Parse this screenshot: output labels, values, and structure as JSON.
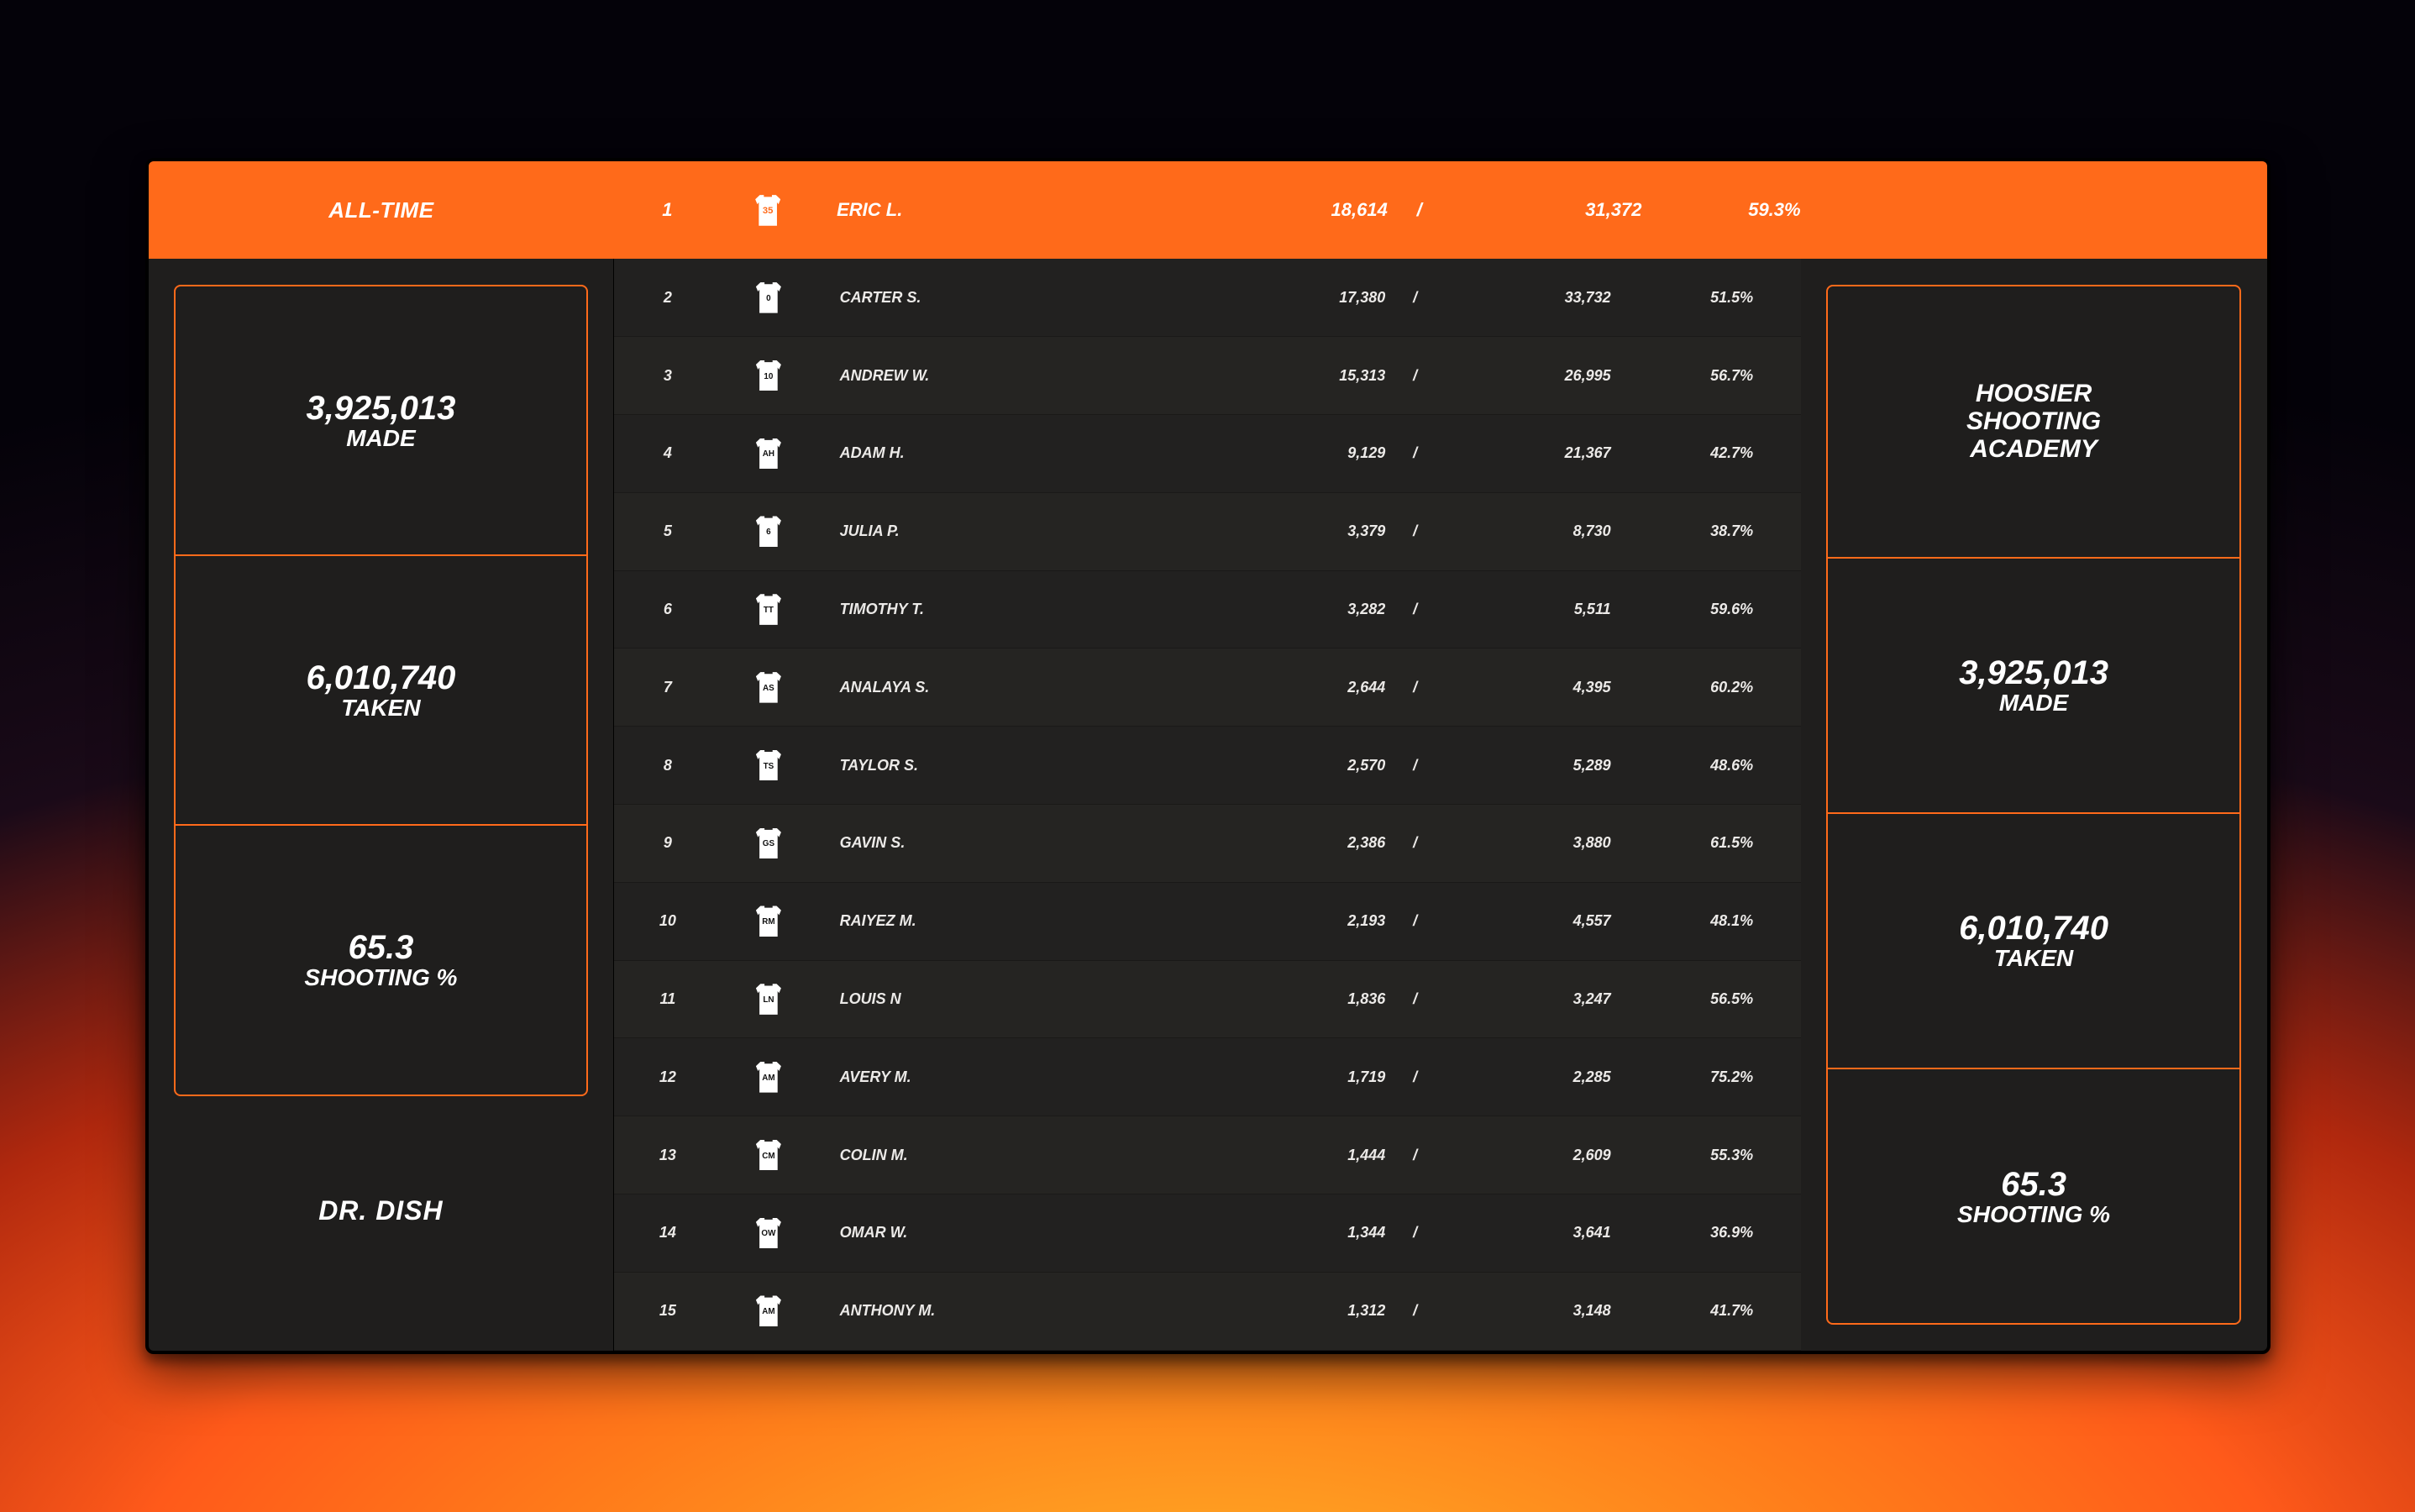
{
  "colors": {
    "accent": "#ff6a1a",
    "screen_bg": "#1f1e1d",
    "row_bg_a": "#252422",
    "row_bg_b": "#222120",
    "text": "#ffffff",
    "border": "#000000"
  },
  "header": {
    "period_label": "ALL-TIME",
    "top_player": {
      "rank": "1",
      "jersey": "35",
      "name": "ERIC L.",
      "made": "18,614",
      "slash": "/",
      "taken": "31,372",
      "pct": "59.3%"
    }
  },
  "left_panel": {
    "made_value": "3,925,013",
    "made_label": "MADE",
    "taken_value": "6,010,740",
    "taken_label": "TAKEN",
    "pct_value": "65.3",
    "pct_label": "SHOOTING %"
  },
  "brand": "DR. DISH",
  "right_panel": {
    "title_l1": "HOOSIER",
    "title_l2": "SHOOTING",
    "title_l3": "ACADEMY",
    "made_value": "3,925,013",
    "made_label": "MADE",
    "taken_value": "6,010,740",
    "taken_label": "TAKEN",
    "pct_value": "65.3",
    "pct_label": "SHOOTING %"
  },
  "rows": [
    {
      "rank": "2",
      "jersey": "0",
      "name": "CARTER S.",
      "made": "17,380",
      "taken": "33,732",
      "pct": "51.5%"
    },
    {
      "rank": "3",
      "jersey": "10",
      "name": "ANDREW W.",
      "made": "15,313",
      "taken": "26,995",
      "pct": "56.7%"
    },
    {
      "rank": "4",
      "jersey": "AH",
      "name": "ADAM H.",
      "made": "9,129",
      "taken": "21,367",
      "pct": "42.7%"
    },
    {
      "rank": "5",
      "jersey": "6",
      "name": "JULIA P.",
      "made": "3,379",
      "taken": "8,730",
      "pct": "38.7%"
    },
    {
      "rank": "6",
      "jersey": "TT",
      "name": "TIMOTHY T.",
      "made": "3,282",
      "taken": "5,511",
      "pct": "59.6%"
    },
    {
      "rank": "7",
      "jersey": "AS",
      "name": "ANALAYA S.",
      "made": "2,644",
      "taken": "4,395",
      "pct": "60.2%"
    },
    {
      "rank": "8",
      "jersey": "TS",
      "name": "TAYLOR S.",
      "made": "2,570",
      "taken": "5,289",
      "pct": "48.6%"
    },
    {
      "rank": "9",
      "jersey": "GS",
      "name": "GAVIN S.",
      "made": "2,386",
      "taken": "3,880",
      "pct": "61.5%"
    },
    {
      "rank": "10",
      "jersey": "RM",
      "name": "RAIYEZ M.",
      "made": "2,193",
      "taken": "4,557",
      "pct": "48.1%"
    },
    {
      "rank": "11",
      "jersey": "LN",
      "name": "LOUIS N",
      "made": "1,836",
      "taken": "3,247",
      "pct": "56.5%"
    },
    {
      "rank": "12",
      "jersey": "AM",
      "name": "AVERY M.",
      "made": "1,719",
      "taken": "2,285",
      "pct": "75.2%"
    },
    {
      "rank": "13",
      "jersey": "CM",
      "name": "COLIN M.",
      "made": "1,444",
      "taken": "2,609",
      "pct": "55.3%"
    },
    {
      "rank": "14",
      "jersey": "OW",
      "name": "OMAR W.",
      "made": "1,344",
      "taken": "3,641",
      "pct": "36.9%"
    },
    {
      "rank": "15",
      "jersey": "AM",
      "name": "ANTHONY M.",
      "made": "1,312",
      "taken": "3,148",
      "pct": "41.7%"
    }
  ],
  "slash": "/"
}
